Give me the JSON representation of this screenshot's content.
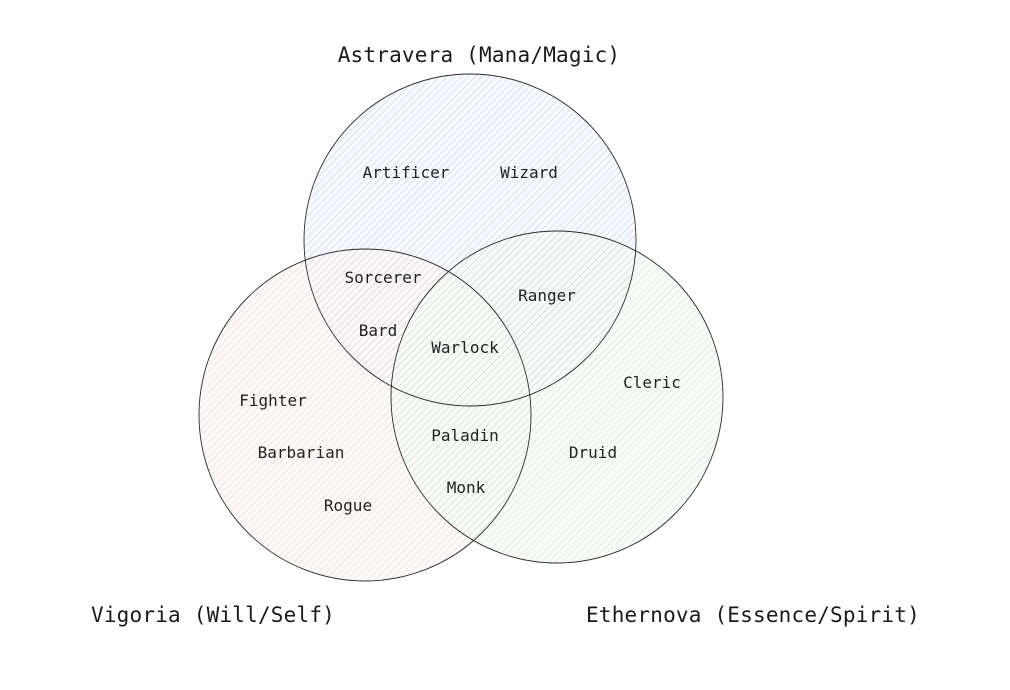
{
  "diagram": {
    "type": "venn",
    "sets": {
      "magic": {
        "title": "Astravera (Mana/Magic)",
        "color": "#9fb6e8"
      },
      "will": {
        "title": "Vigoria (Will/Self)",
        "color": "#e9a3a3"
      },
      "spirit": {
        "title": "Ethernova (Essence/Spirit)",
        "color": "#9dd6ac"
      }
    },
    "members": {
      "artificer": "Artificer",
      "wizard": "Wizard",
      "sorcerer": "Sorcerer",
      "bard": "Bard",
      "warlock": "Warlock",
      "ranger": "Ranger",
      "cleric": "Cleric",
      "fighter": "Fighter",
      "barbarian": "Barbarian",
      "rogue": "Rogue",
      "paladin": "Paladin",
      "monk": "Monk",
      "druid": "Druid"
    },
    "regions": {
      "magic_only": [
        "Artificer",
        "Wizard"
      ],
      "magic_will": [
        "Sorcerer",
        "Bard"
      ],
      "magic_spirit": [
        "Ranger"
      ],
      "all_three": [
        "Warlock"
      ],
      "will_only": [
        "Fighter",
        "Barbarian",
        "Rogue"
      ],
      "will_spirit": [
        "Paladin",
        "Monk"
      ],
      "spirit_only": [
        "Cleric",
        "Druid"
      ]
    }
  }
}
